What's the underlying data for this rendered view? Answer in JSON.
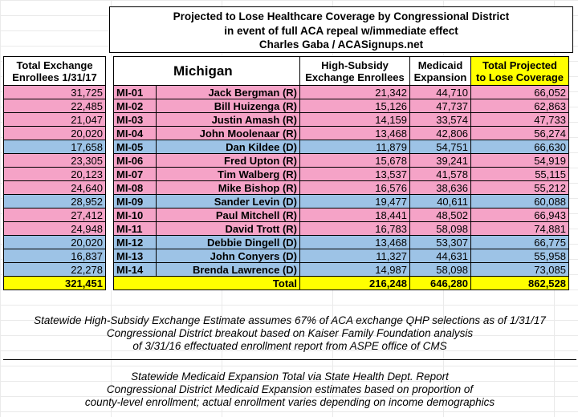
{
  "title": {
    "line1": "Projected to Lose Healthcare Coverage by Congressional District",
    "line2": "in event of full ACA repeal w/immediate effect",
    "line3": "Charles Gaba / ACASignups.net"
  },
  "headers": {
    "enrollees_l1": "Total Exchange",
    "enrollees_l2": "Enrollees 1/31/17",
    "state": "Michigan",
    "subsidy_l1": "High-Subsidy",
    "subsidy_l2": "Exchange Enrollees",
    "medicaid_l1": "Medicaid",
    "medicaid_l2": "Expansion",
    "total_l1": "Total Projected",
    "total_l2": "to Lose Coverage"
  },
  "rows": [
    {
      "enrollees": "31,725",
      "district": "MI-01",
      "name": "Jack Bergman (R)",
      "party": "R",
      "subsidy": "21,342",
      "medicaid": "44,710",
      "total": "66,052"
    },
    {
      "enrollees": "22,485",
      "district": "MI-02",
      "name": "Bill Huizenga (R)",
      "party": "R",
      "subsidy": "15,126",
      "medicaid": "47,737",
      "total": "62,863"
    },
    {
      "enrollees": "21,047",
      "district": "MI-03",
      "name": "Justin Amash (R)",
      "party": "R",
      "subsidy": "14,159",
      "medicaid": "33,574",
      "total": "47,733"
    },
    {
      "enrollees": "20,020",
      "district": "MI-04",
      "name": "John Moolenaar (R)",
      "party": "R",
      "subsidy": "13,468",
      "medicaid": "42,806",
      "total": "56,274"
    },
    {
      "enrollees": "17,658",
      "district": "MI-05",
      "name": "Dan Kildee (D)",
      "party": "D",
      "subsidy": "11,879",
      "medicaid": "54,751",
      "total": "66,630"
    },
    {
      "enrollees": "23,305",
      "district": "MI-06",
      "name": "Fred Upton (R)",
      "party": "R",
      "subsidy": "15,678",
      "medicaid": "39,241",
      "total": "54,919"
    },
    {
      "enrollees": "20,123",
      "district": "MI-07",
      "name": "Tim Walberg (R)",
      "party": "R",
      "subsidy": "13,537",
      "medicaid": "41,578",
      "total": "55,115"
    },
    {
      "enrollees": "24,640",
      "district": "MI-08",
      "name": "Mike Bishop (R)",
      "party": "R",
      "subsidy": "16,576",
      "medicaid": "38,636",
      "total": "55,212"
    },
    {
      "enrollees": "28,952",
      "district": "MI-09",
      "name": "Sander Levin (D)",
      "party": "D",
      "subsidy": "19,477",
      "medicaid": "40,611",
      "total": "60,088"
    },
    {
      "enrollees": "27,412",
      "district": "MI-10",
      "name": "Paul Mitchell (R)",
      "party": "R",
      "subsidy": "18,441",
      "medicaid": "48,502",
      "total": "66,943"
    },
    {
      "enrollees": "24,948",
      "district": "MI-11",
      "name": "David Trott (R)",
      "party": "R",
      "subsidy": "16,783",
      "medicaid": "58,098",
      "total": "74,881"
    },
    {
      "enrollees": "20,020",
      "district": "MI-12",
      "name": "Debbie Dingell (D)",
      "party": "D",
      "subsidy": "13,468",
      "medicaid": "53,307",
      "total": "66,775"
    },
    {
      "enrollees": "16,837",
      "district": "MI-13",
      "name": "John Conyers (D)",
      "party": "D",
      "subsidy": "11,327",
      "medicaid": "44,631",
      "total": "55,958"
    },
    {
      "enrollees": "22,278",
      "district": "MI-14",
      "name": "Brenda Lawrence (D)",
      "party": "D",
      "subsidy": "14,987",
      "medicaid": "58,098",
      "total": "73,085"
    }
  ],
  "totals": {
    "enrollees": "321,451",
    "label": "Total",
    "subsidy": "216,248",
    "medicaid": "646,280",
    "total": "862,528"
  },
  "notes1": [
    "Statewide High-Subsidy Exchange Estimate assumes 67% of ACA exchange QHP selections as of 1/31/17",
    "Congressional District breakout based on Kaiser Family Foundation analysis",
    "of 3/31/16 effectuated enrollment report from ASPE office of CMS"
  ],
  "notes2": [
    "Statewide Medicaid Expansion Total via State Health Dept. Report",
    "Congressional District Medicaid Expansion estimates based on proportion of",
    "county-level enrollment; actual enrollment varies depending on income demographics"
  ],
  "colors": {
    "republican": "#f5a3c7",
    "democrat": "#9dc3e6",
    "total": "#ffff00"
  }
}
